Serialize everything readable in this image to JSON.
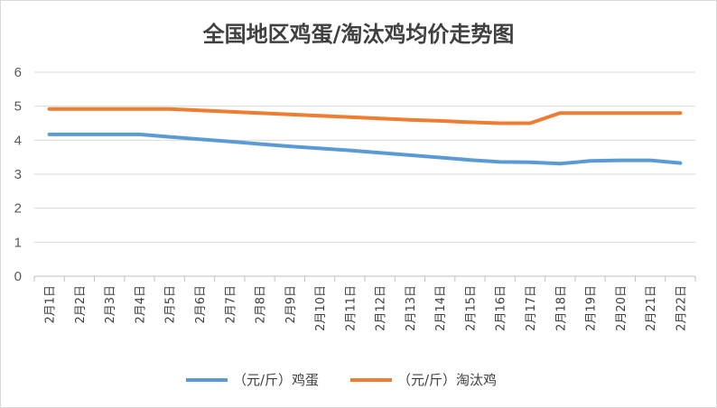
{
  "chart_data": {
    "type": "line",
    "title": "全国地区鸡蛋/淘汰鸡均价走势图",
    "xlabel": "",
    "ylabel": "",
    "ylim": [
      0,
      6
    ],
    "yticks": [
      0,
      1,
      2,
      3,
      4,
      5,
      6
    ],
    "grid": true,
    "legend": "bottom",
    "categories": [
      "2月1日",
      "2月2日",
      "2月3日",
      "2月4日",
      "2月5日",
      "2月6日",
      "2月7日",
      "2月8日",
      "2月9日",
      "2月10日",
      "2月11日",
      "2月12日",
      "2月13日",
      "2月14日",
      "2月15日",
      "2月16日",
      "2月17日",
      "2月18日",
      "2月19日",
      "2月20日",
      "2月21日",
      "2月22日"
    ],
    "series": [
      {
        "name": "（元/斤）鸡蛋",
        "color": "#5b9bd5",
        "values": [
          4.17,
          4.17,
          4.17,
          4.17,
          4.1,
          4.03,
          3.96,
          3.89,
          3.82,
          3.76,
          3.7,
          3.63,
          3.56,
          3.49,
          3.42,
          3.36,
          3.35,
          3.31,
          3.39,
          3.41,
          3.41,
          3.33
        ]
      },
      {
        "name": "（元/斤）淘汰鸡",
        "color": "#ed7d31",
        "values": [
          4.92,
          4.92,
          4.92,
          4.92,
          4.92,
          4.88,
          4.84,
          4.8,
          4.76,
          4.72,
          4.68,
          4.64,
          4.6,
          4.57,
          4.53,
          4.5,
          4.5,
          4.8,
          4.8,
          4.8,
          4.8,
          4.8
        ]
      }
    ]
  }
}
